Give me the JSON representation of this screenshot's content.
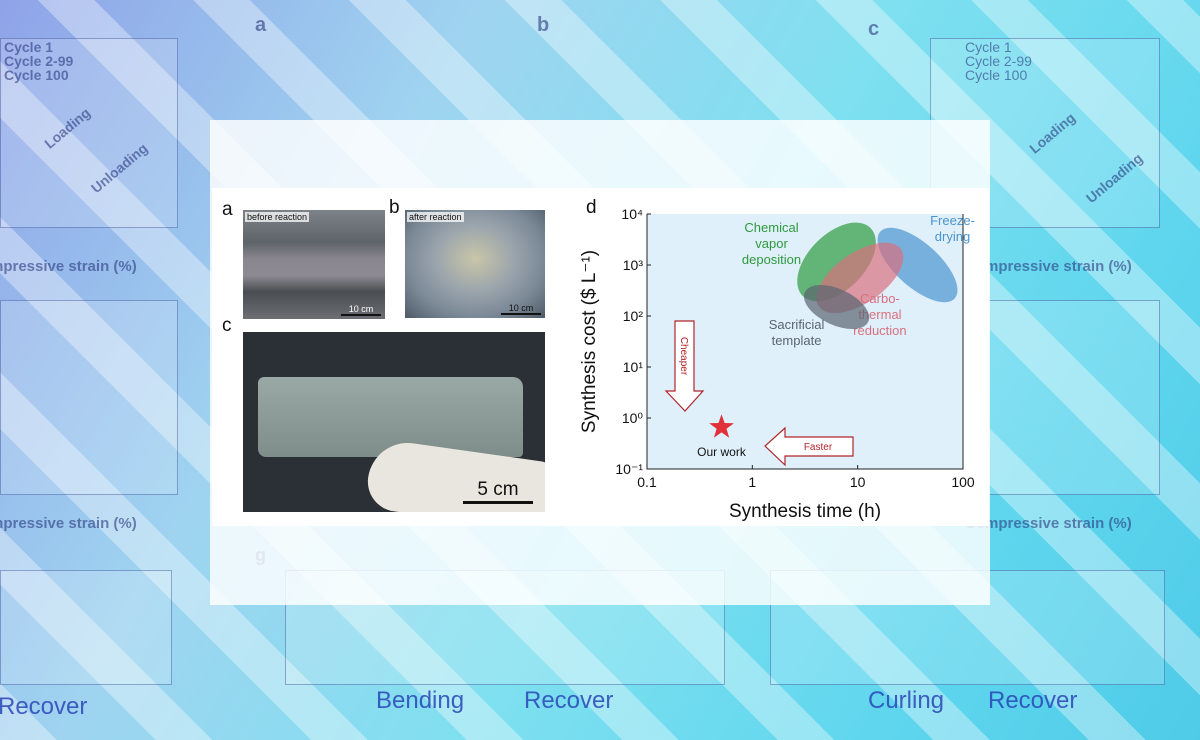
{
  "background": {
    "bottom_labels": [
      "Recover",
      "Bending",
      "Recover",
      "Curling",
      "Recover"
    ],
    "axis_labels": [
      "Compressive strain (%)",
      "Compressive strain (%)",
      "Compressive strain (%)",
      "Compressive strain (%)"
    ],
    "panel_letters": [
      "a",
      "b",
      "c",
      "g"
    ],
    "legend_left_top": [
      "Cycle 1",
      "Cycle 2-99",
      "Cycle 100"
    ],
    "legend_right_top": [
      "Cycle 1",
      "Cycle 2-99",
      "Cycle 100"
    ],
    "curve_labels": [
      "Loading",
      "Unloading",
      "Loading",
      "Unloading"
    ]
  },
  "figure": {
    "panel_a": {
      "letter": "a",
      "caption": "before reaction",
      "scale": "10 cm"
    },
    "panel_b": {
      "letter": "b",
      "caption": "after reaction",
      "scale": "10 cm"
    },
    "panel_c": {
      "letter": "c",
      "scale": "5 cm"
    },
    "panel_d": {
      "letter": "d"
    }
  },
  "chart_data": {
    "type": "scatter",
    "xlabel": "Synthesis time (h)",
    "ylabel": "Synthesis cost ($ L⁻¹)",
    "x_scale": "log",
    "y_scale": "log",
    "xlim": [
      0.1,
      100
    ],
    "ylim": [
      0.1,
      10000
    ],
    "x_ticks": [
      "0.1",
      "1",
      "10",
      "100"
    ],
    "y_ticks": [
      "10⁻¹",
      "10⁰",
      "10¹",
      "10²",
      "10³",
      "10⁴"
    ],
    "grid": false,
    "regions": [
      {
        "name": "Chemical vapor deposition",
        "label_lines": [
          "Chemical",
          "vapor",
          "deposition"
        ],
        "center": [
          6.3,
          1150
        ],
        "color": "#2e9a3e"
      },
      {
        "name": "Freeze-drying",
        "label_lines": [
          "Freeze-",
          "drying"
        ],
        "center": [
          37,
          1000
        ],
        "color": "#4a94cf"
      },
      {
        "name": "Carbothermal reduction",
        "label_lines": [
          "Carbo-",
          "thermal",
          "reduction"
        ],
        "center": [
          10.5,
          560
        ],
        "color": "#d9707f"
      },
      {
        "name": "Sacrificial template",
        "label_lines": [
          "Sacrificial",
          "template"
        ],
        "center": [
          6.3,
          150
        ],
        "color": "#5a6470"
      }
    ],
    "points": [
      {
        "name": "Our work",
        "x": 0.51,
        "y": 0.66,
        "marker": "star",
        "color": "#e03238"
      }
    ],
    "annotations": [
      {
        "text": "Cheaper",
        "direction": "down"
      },
      {
        "text": "Faster",
        "direction": "left"
      }
    ],
    "colors": {
      "plot_bg": "#dff0fb",
      "arrow": "#b0242a"
    }
  }
}
